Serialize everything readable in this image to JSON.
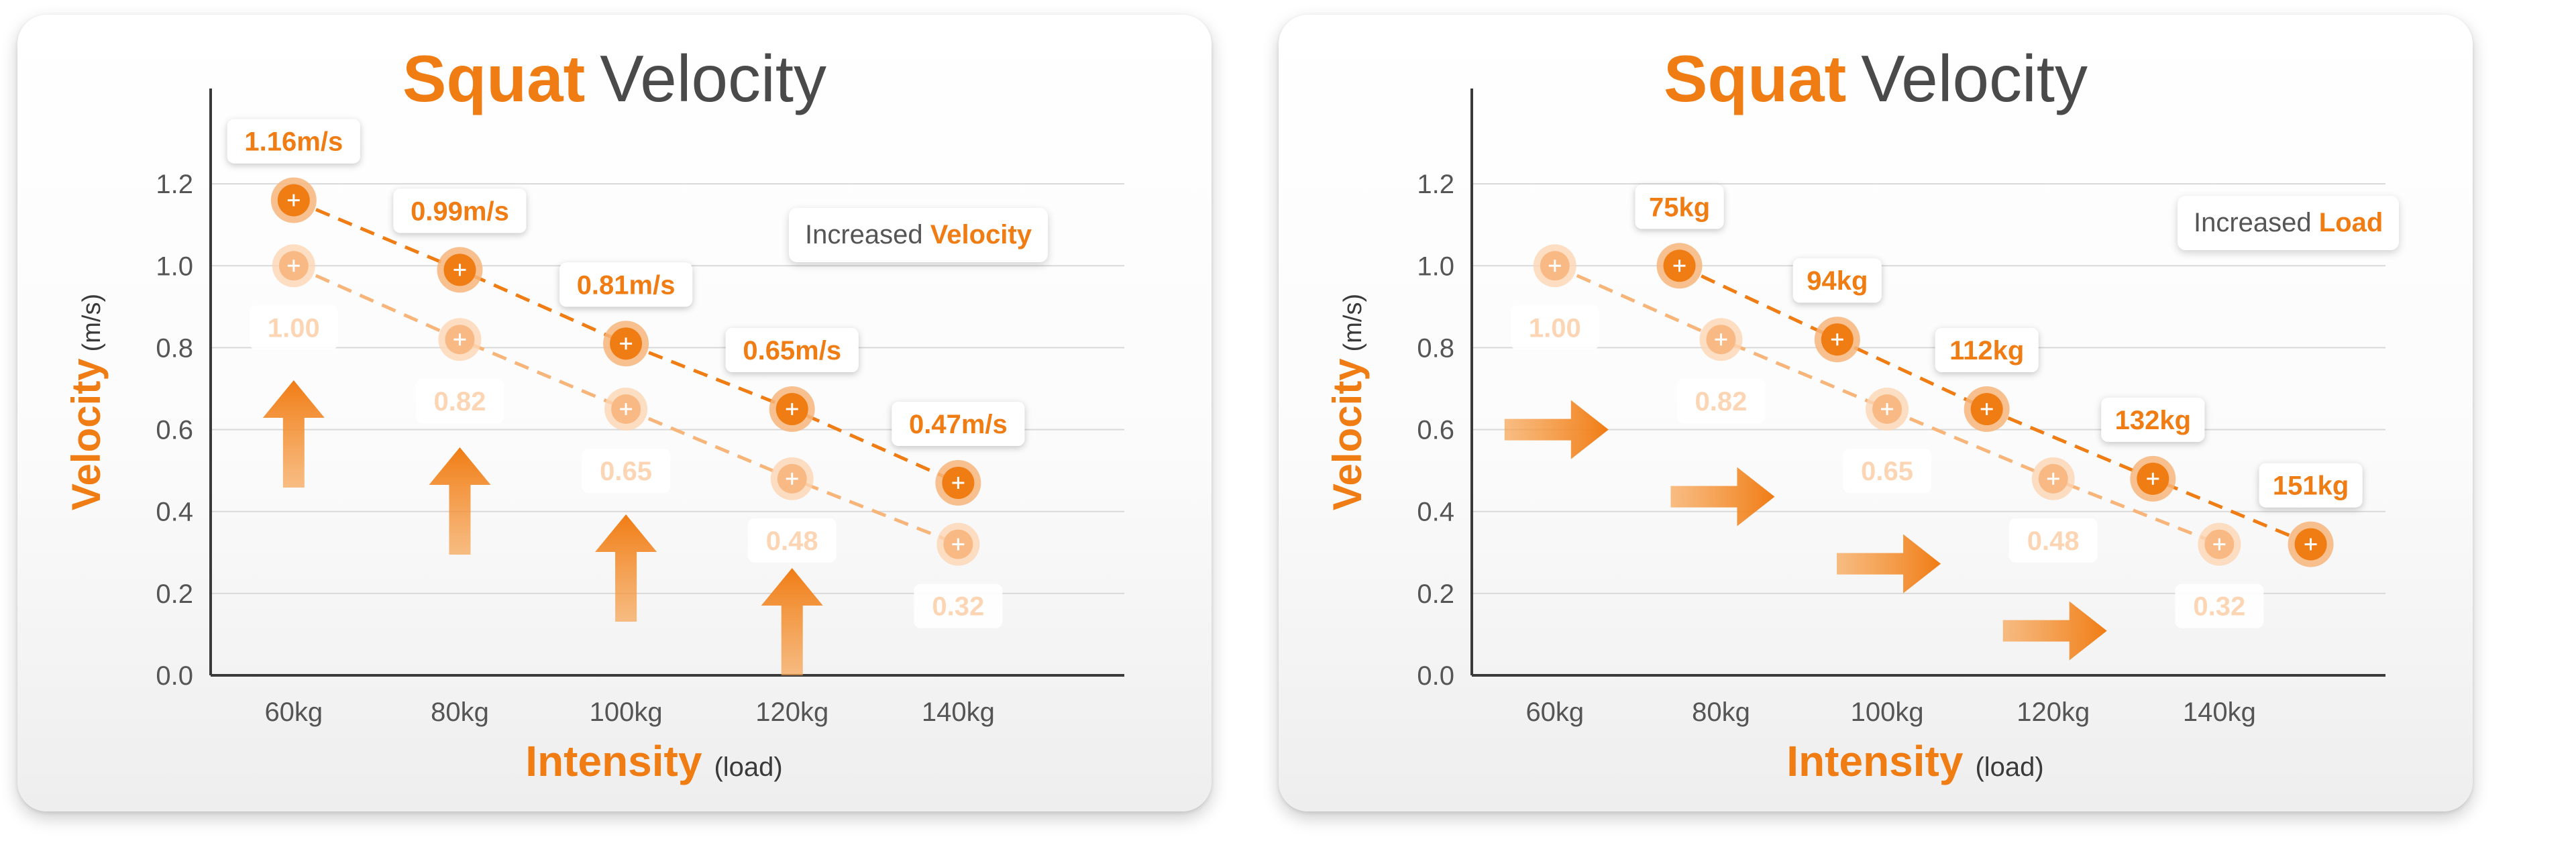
{
  "colors": {
    "accent": "#f07c14",
    "accent_light": "#f7b57a",
    "label_light": "#fcd6b4",
    "axis": "#3a3a3a",
    "grid": "#d9d9d9"
  },
  "chart_data": [
    {
      "type": "scatter",
      "title": {
        "keyword": "Squat",
        "rest": "Velocity"
      },
      "xlabel": {
        "main": "Intensity",
        "sub": "(load)"
      },
      "ylabel": {
        "main": "Velocity",
        "sub": "(m/s)"
      },
      "x_ticks": [
        "60kg",
        "80kg",
        "100kg",
        "120kg",
        "140kg"
      ],
      "xlim": [
        50,
        160
      ],
      "ylim": [
        0,
        1.4
      ],
      "y_ticks": [
        "0.0",
        "0.2",
        "0.4",
        "0.6",
        "0.8",
        "1.0",
        "1.2"
      ],
      "grid": true,
      "legend": {
        "text": "Increased",
        "keyword": "Velocity",
        "position": "top-right"
      },
      "annotation_arrows": "up",
      "series": [
        {
          "style": "light",
          "x": [
            60,
            80,
            100,
            120,
            140
          ],
          "y": [
            1.0,
            0.82,
            0.65,
            0.48,
            0.32
          ],
          "labels": [
            "1.00",
            "0.82",
            "0.65",
            "0.48",
            "0.32"
          ]
        },
        {
          "style": "dark",
          "x": [
            60,
            80,
            100,
            120,
            140
          ],
          "y": [
            1.16,
            0.99,
            0.81,
            0.65,
            0.47
          ],
          "labels": [
            "1.16m/s",
            "0.99m/s",
            "0.81m/s",
            "0.65m/s",
            "0.47m/s"
          ]
        }
      ]
    },
    {
      "type": "scatter",
      "title": {
        "keyword": "Squat",
        "rest": "Velocity"
      },
      "xlabel": {
        "main": "Intensity",
        "sub": "(load)"
      },
      "ylabel": {
        "main": "Velocity",
        "sub": "(m/s)"
      },
      "x_ticks": [
        "60kg",
        "80kg",
        "100kg",
        "120kg",
        "140kg"
      ],
      "xlim": [
        50,
        160
      ],
      "ylim": [
        0,
        1.4
      ],
      "y_ticks": [
        "0.0",
        "0.2",
        "0.4",
        "0.6",
        "0.8",
        "1.0",
        "1.2"
      ],
      "grid": true,
      "legend": {
        "text": "Increased",
        "keyword": "Load",
        "position": "top-right"
      },
      "annotation_arrows": "right",
      "series": [
        {
          "style": "light",
          "x": [
            60,
            80,
            100,
            120,
            140
          ],
          "y": [
            1.0,
            0.82,
            0.65,
            0.48,
            0.32
          ],
          "labels": [
            "1.00",
            "0.82",
            "0.65",
            "0.48",
            "0.32"
          ]
        },
        {
          "style": "dark",
          "x": [
            75,
            94,
            112,
            132,
            151
          ],
          "y": [
            1.0,
            0.82,
            0.65,
            0.48,
            0.32
          ],
          "labels": [
            "75kg",
            "94kg",
            "112kg",
            "132kg",
            "151kg"
          ]
        }
      ]
    }
  ]
}
